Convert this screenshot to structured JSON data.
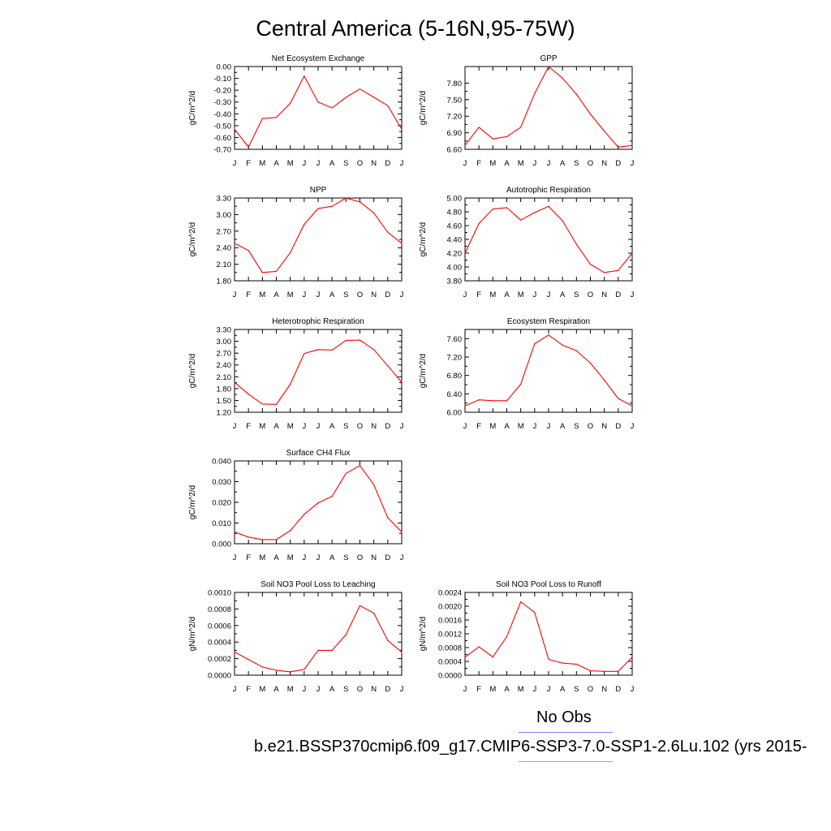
{
  "title": "Central America (5-16N,95-75W)",
  "months": [
    "J",
    "F",
    "M",
    "A",
    "M",
    "J",
    "J",
    "A",
    "S",
    "O",
    "N",
    "D",
    "J"
  ],
  "colors": {
    "series": "#ff0000",
    "legend_obs": "#8080ff",
    "legend_model": "#ff8080"
  },
  "legend": {
    "obs_label": "No Obs",
    "model_label": "b.e21.BSSP370cmip6.f09_g17.CMIP6-SSP3-7.0-SSP1-2.6Lu.102 (yrs 2015-"
  },
  "chart_data": [
    {
      "type": "line",
      "title": "Net Ecosystem Exchange",
      "ylabel": "gC/m^2/d",
      "ylim": [
        -0.7,
        0.0
      ],
      "ticks": [
        "-0.70",
        "-0.60",
        "-0.50",
        "-0.40",
        "-0.30",
        "-0.20",
        "-0.10",
        "0.00"
      ],
      "tick_values": [
        -0.7,
        -0.6,
        -0.5,
        -0.4,
        -0.3,
        -0.2,
        -0.1,
        0.0
      ],
      "values": [
        -0.53,
        -0.68,
        -0.44,
        -0.43,
        -0.31,
        -0.08,
        -0.3,
        -0.35,
        -0.26,
        -0.19,
        -0.26,
        -0.33,
        -0.53
      ]
    },
    {
      "type": "line",
      "title": "GPP",
      "ylabel": "gC/m^2/d",
      "ylim": [
        6.6,
        8.1
      ],
      "ticks": [
        "6.60",
        "6.90",
        "7.20",
        "7.50",
        "7.80"
      ],
      "tick_values": [
        6.6,
        6.9,
        7.2,
        7.5,
        7.8
      ],
      "values": [
        6.67,
        7.0,
        6.79,
        6.83,
        7.0,
        7.61,
        8.1,
        7.89,
        7.6,
        7.24,
        6.93,
        6.64,
        6.67
      ]
    },
    {
      "type": "line",
      "title": "NPP",
      "ylabel": "gC/m^2/d",
      "ylim": [
        1.8,
        3.3
      ],
      "ticks": [
        "1.80",
        "2.10",
        "2.40",
        "2.70",
        "3.00",
        "3.30"
      ],
      "tick_values": [
        1.8,
        2.1,
        2.4,
        2.7,
        3.0,
        3.3
      ],
      "values": [
        2.48,
        2.35,
        1.95,
        1.97,
        2.31,
        2.82,
        3.11,
        3.15,
        3.3,
        3.23,
        3.03,
        2.68,
        2.48
      ]
    },
    {
      "type": "line",
      "title": "Autotrophic Respiration",
      "ylabel": "gC/m^2/d",
      "ylim": [
        3.8,
        5.0
      ],
      "ticks": [
        "3.80",
        "4.00",
        "4.20",
        "4.40",
        "4.60",
        "4.80",
        "5.00"
      ],
      "tick_values": [
        3.8,
        4.0,
        4.2,
        4.4,
        4.6,
        4.8,
        5.0
      ],
      "values": [
        4.2,
        4.63,
        4.84,
        4.86,
        4.68,
        4.79,
        4.88,
        4.67,
        4.33,
        4.04,
        3.92,
        3.95,
        4.2
      ]
    },
    {
      "type": "line",
      "title": "Heterotrophic Respiration",
      "ylabel": "gC/m^2/d",
      "ylim": [
        1.2,
        3.3
      ],
      "ticks": [
        "1.20",
        "1.50",
        "1.80",
        "2.10",
        "2.40",
        "2.70",
        "3.00",
        "3.30"
      ],
      "tick_values": [
        1.2,
        1.5,
        1.8,
        2.1,
        2.4,
        2.7,
        3.0,
        3.3
      ],
      "values": [
        1.96,
        1.66,
        1.41,
        1.4,
        1.91,
        2.69,
        2.79,
        2.78,
        3.02,
        3.03,
        2.79,
        2.38,
        1.96
      ]
    },
    {
      "type": "line",
      "title": "Ecosystem Respiration",
      "ylabel": "gC/m^2/d",
      "ylim": [
        6.0,
        7.8
      ],
      "ticks": [
        "6.00",
        "6.40",
        "6.80",
        "7.20",
        "7.60"
      ],
      "tick_values": [
        6.0,
        6.4,
        6.8,
        7.2,
        7.6
      ],
      "values": [
        6.14,
        6.27,
        6.25,
        6.25,
        6.61,
        7.49,
        7.68,
        7.46,
        7.34,
        7.07,
        6.7,
        6.3,
        6.14
      ]
    },
    {
      "type": "line",
      "title": "Surface CH4 Flux",
      "ylabel": "gC/m^2/d",
      "ylim": [
        0.0,
        0.04
      ],
      "ticks": [
        "0.000",
        "0.010",
        "0.020",
        "0.030",
        "0.040"
      ],
      "tick_values": [
        0.0,
        0.01,
        0.02,
        0.03,
        0.04
      ],
      "values": [
        0.0057,
        0.0032,
        0.002,
        0.002,
        0.0063,
        0.0142,
        0.0197,
        0.0229,
        0.034,
        0.0378,
        0.0285,
        0.0126,
        0.0057
      ]
    },
    null,
    {
      "type": "line",
      "title": "Soil NO3 Pool Loss to Leaching",
      "ylabel": "gN/m^2/d",
      "ylim": [
        0.0,
        0.001
      ],
      "ticks": [
        "0.0000",
        "0.0002",
        "0.0004",
        "0.0006",
        "0.0008",
        "0.0010"
      ],
      "tick_values": [
        0.0,
        0.0002,
        0.0004,
        0.0006,
        0.0008,
        0.001
      ],
      "values": [
        0.00028,
        0.00019,
        0.0001,
        6e-05,
        4e-05,
        7e-05,
        0.0003,
        0.0003,
        0.00049,
        0.00084,
        0.00075,
        0.00042,
        0.00028
      ]
    },
    {
      "type": "line",
      "title": "Soil NO3 Pool Loss to Runoff",
      "ylabel": "gN/m^2/d",
      "ylim": [
        0.0,
        0.0024
      ],
      "ticks": [
        "0.0000",
        "0.0004",
        "0.0008",
        "0.0012",
        "0.0016",
        "0.0020",
        "0.0024"
      ],
      "tick_values": [
        0.0,
        0.0004,
        0.0008,
        0.0012,
        0.0016,
        0.002,
        0.0024
      ],
      "values": [
        0.00052,
        0.00082,
        0.00053,
        0.00112,
        0.00213,
        0.00182,
        0.00046,
        0.00035,
        0.00032,
        0.00013,
        0.00011,
        0.00011,
        0.00052
      ]
    }
  ]
}
